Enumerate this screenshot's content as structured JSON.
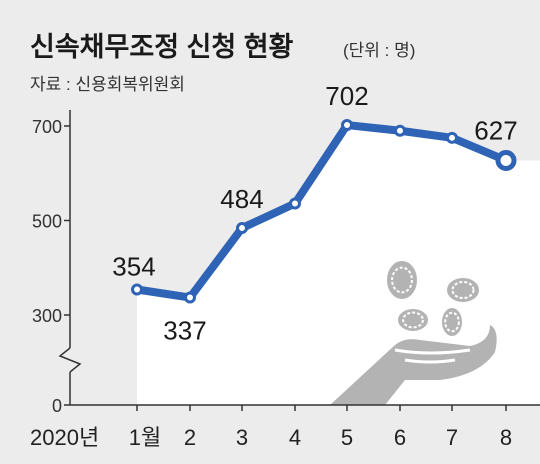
{
  "header": {
    "title": "신속채무조정 신청 현황",
    "unit": "(단위 : 명)",
    "source": "자료 : 신용회복위원회"
  },
  "colors": {
    "background": "#ececec",
    "plot_area": "#ffffff",
    "line": "#2f63b5",
    "illustration": "#b3b3b3"
  },
  "icons": [
    "coins-and-hand-illustration"
  ],
  "chart_data": {
    "type": "line",
    "title": "신속채무조정 신청 현황",
    "unit": "(단위 : 명)",
    "x_prefix": "2020년",
    "categories": [
      "1월",
      "2",
      "3",
      "4",
      "5",
      "6",
      "7",
      "8"
    ],
    "series": [
      {
        "values": [
          354,
          337,
          484,
          536,
          702,
          690,
          675,
          627
        ]
      }
    ],
    "data_labels": [
      {
        "index": 0,
        "text": "354"
      },
      {
        "index": 1,
        "text": "337"
      },
      {
        "index": 2,
        "text": "484"
      },
      {
        "index": 4,
        "text": "702"
      },
      {
        "index": 7,
        "text": "627"
      }
    ],
    "yticks": [
      0,
      300,
      500,
      700
    ],
    "ytick_labels": [
      "0",
      "300",
      "500",
      "700"
    ],
    "ylim": [
      0,
      700
    ],
    "axis_break": true,
    "grid": false,
    "legend": "none"
  }
}
